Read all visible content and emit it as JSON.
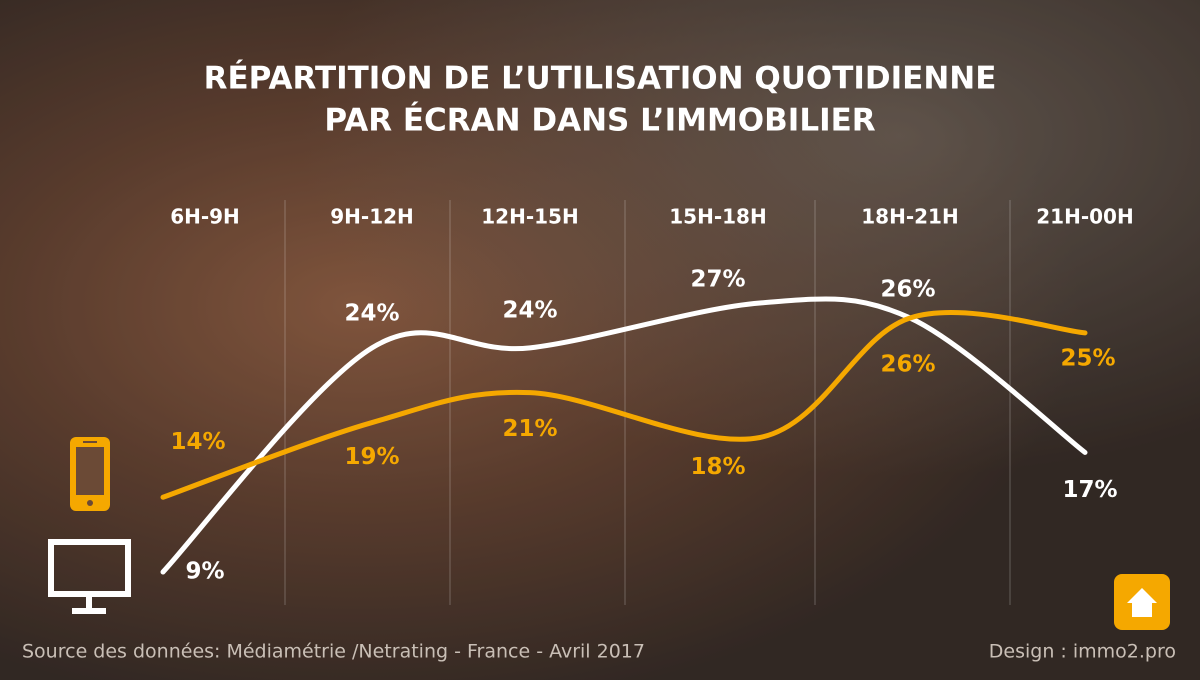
{
  "chart_data": {
    "type": "line",
    "title_lines": [
      "RÉPARTITION DE L’UTILISATION QUOTIDIENNE",
      "PAR ÉCRAN DANS L’IMMOBILIER"
    ],
    "categories": [
      "6H-9H",
      "9H-12H",
      "12H-15H",
      "15H-18H",
      "18H-21H",
      "21H-00H"
    ],
    "series": [
      {
        "color": "#ffffff",
        "values": [
          9,
          24,
          24,
          27,
          26,
          17
        ],
        "value_labels": [
          "9%",
          "24%",
          "24%",
          "27%",
          "26%",
          "17%"
        ]
      },
      {
        "color": "#f5a800",
        "values": [
          14,
          19,
          21,
          18,
          26,
          25
        ],
        "value_labels": [
          "14%",
          "19%",
          "21%",
          "18%",
          "26%",
          "25%"
        ]
      }
    ]
  },
  "footer": {
    "source": "Source des données: Médiamétrie /Netrating - France - Avril 2017",
    "credit": "Design : immo2.pro"
  }
}
